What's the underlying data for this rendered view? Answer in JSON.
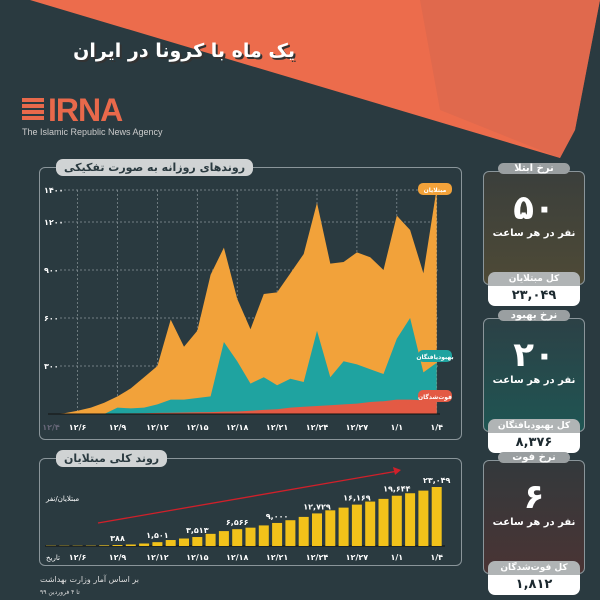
{
  "header": {
    "title": "یک ماه با کرونا در ایران",
    "logo_text": "IRNA",
    "logo_sub": "The Islamic Republic News Agency"
  },
  "colors": {
    "bg": "#2a3a40",
    "infected": "#f2a23a",
    "recovered": "#1fa3a0",
    "deaths": "#e35a44",
    "bar": "#f2c21a",
    "header": "#ec6c4c"
  },
  "cards": [
    {
      "title": "نرخ ابتلا",
      "value": "۵۰",
      "unit": "نفر در هر ساعت",
      "total_label": "کل مبتلایان",
      "total": "۲۳,۰۴۹"
    },
    {
      "title": "نرخ بهبود",
      "value": "۲۰",
      "unit": "نفر در هر ساعت",
      "total_label": "کل بهبودیافتگان",
      "total": "۸,۳۷۶"
    },
    {
      "title": "نرخ فوت",
      "value": "۶",
      "unit": "نفر در هر ساعت",
      "total_label": "کل فوت‌شدگان",
      "total": "۱,۸۱۲"
    }
  ],
  "source": "بر اساس آمار وزارت بهداشت",
  "source_date": "تا ۴ فروردین ۹۹",
  "chart_data": [
    {
      "type": "area",
      "title": "روندهای روزانه به صورت تفکیکی",
      "x": [
        "12/4",
        "12/5",
        "12/6",
        "12/7",
        "12/8",
        "12/9",
        "12/10",
        "12/11",
        "12/12",
        "12/13",
        "12/14",
        "12/15",
        "12/16",
        "12/17",
        "12/18",
        "12/19",
        "12/20",
        "12/21",
        "12/22",
        "12/23",
        "12/24",
        "12/25",
        "12/26",
        "12/27",
        "12/28",
        "12/29",
        "1/1",
        "1/2",
        "1/3",
        "1/4"
      ],
      "x_ticks": [
        "12/4",
        "12/6",
        "12/9",
        "12/12",
        "12/15",
        "12/18",
        "12/21",
        "12/24",
        "12/27",
        "1/1",
        "1/4"
      ],
      "y_ticks": [
        "۳۰۰",
        "۶۰۰",
        "۹۰۰",
        "۱۲۰۰",
        "۱۴۰۰"
      ],
      "y_tick_values": [
        300,
        600,
        900,
        1200,
        1400
      ],
      "ylim": [
        0,
        1400
      ],
      "series": [
        {
          "name": "مبتلایان",
          "values": [
            0,
            5,
            20,
            40,
            70,
            110,
            160,
            230,
            300,
            590,
            420,
            520,
            870,
            1040,
            720,
            530,
            750,
            760,
            880,
            1000,
            1320,
            940,
            950,
            1010,
            980,
            900,
            1240,
            1150,
            880,
            1410
          ]
        },
        {
          "name": "بهبودیافتگان",
          "values": [
            0,
            0,
            0,
            0,
            0,
            40,
            35,
            40,
            60,
            90,
            90,
            100,
            110,
            450,
            330,
            190,
            230,
            180,
            220,
            200,
            520,
            230,
            330,
            310,
            280,
            250,
            470,
            600,
            260,
            320
          ]
        },
        {
          "name": "فوت‌شدگان",
          "values": [
            0,
            0,
            1,
            2,
            2,
            3,
            4,
            5,
            7,
            8,
            9,
            11,
            12,
            15,
            16,
            20,
            26,
            30,
            40,
            45,
            50,
            55,
            60,
            65,
            75,
            80,
            90,
            90,
            85,
            80
          ]
        }
      ]
    },
    {
      "type": "bar",
      "title": "روند کلی مبتلایان",
      "ylabel": "مبتلایان/نفر",
      "xlabel": "تاریخ",
      "x_ticks": [
        "12/6",
        "12/9",
        "12/12",
        "12/15",
        "12/18",
        "12/21",
        "12/24",
        "12/27",
        "1/1",
        "1/4"
      ],
      "values": [
        43,
        61,
        95,
        139,
        245,
        388,
        593,
        978,
        1501,
        2336,
        2922,
        3513,
        4747,
        5823,
        6566,
        7161,
        8042,
        9000,
        10075,
        11364,
        12729,
        13938,
        14991,
        16169,
        17361,
        18407,
        19644,
        20610,
        21638,
        23049
      ],
      "labels": {
        "5": "۳۸۸",
        "8": "۱,۵۰۱",
        "11": "۳,۵۱۳",
        "14": "۶,۵۶۶",
        "17": "۹,۰۰۰",
        "20": "۱۲,۷۲۹",
        "23": "۱۶,۱۶۹",
        "26": "۱۹,۶۴۴",
        "29": "۲۳,۰۴۹"
      }
    }
  ]
}
